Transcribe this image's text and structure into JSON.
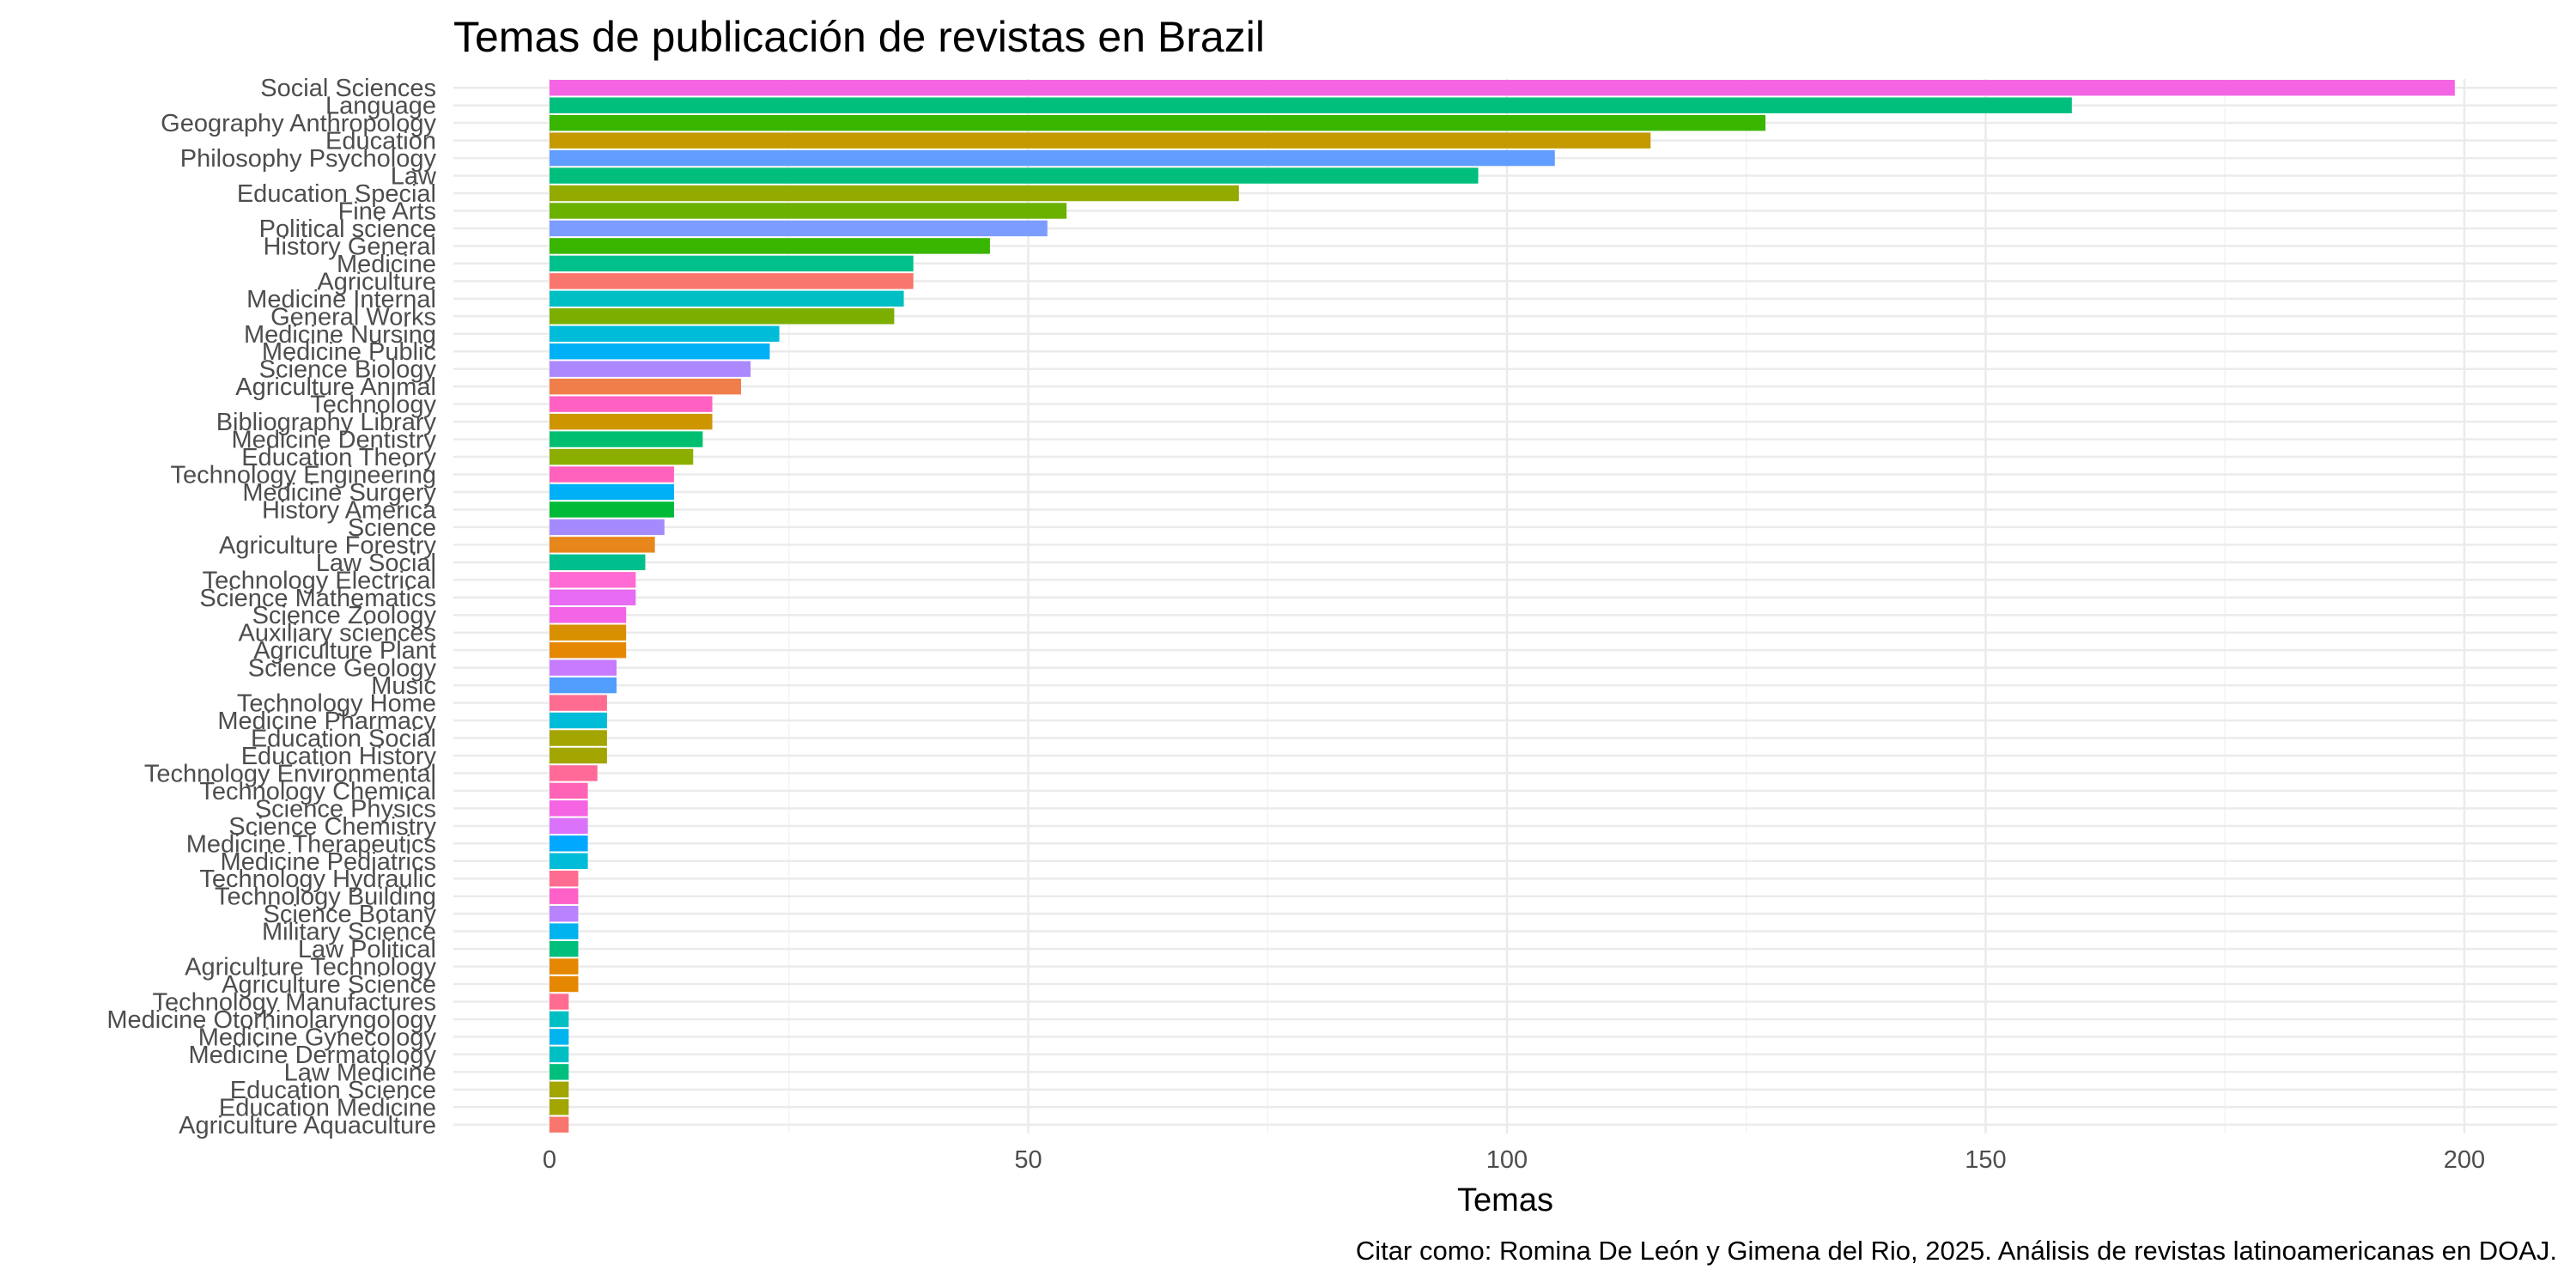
{
  "chart_data": {
    "type": "bar",
    "orientation": "horizontal",
    "title": "Temas de publicación de revistas en Brazil",
    "xlabel": "Temas",
    "ylabel": "",
    "caption": "Citar como: Romina De León y Gimena del Rio, 2025. Análisis de revistas latinoamericanas en DOAJ.",
    "xlim": [
      0,
      200
    ],
    "x_ticks": [
      0,
      50,
      100,
      150,
      200
    ],
    "grid": true,
    "legend": "none",
    "categories": [
      "Social Sciences",
      "Language",
      "Geography Anthropology",
      "Education",
      "Philosophy Psychology",
      "Law",
      "Education Special",
      "Fine Arts",
      "Political science",
      "History General",
      "Medicine",
      "Agriculture",
      "Medicine Internal",
      "General Works",
      "Medicine Nursing",
      "Medicine Public",
      "Science Biology",
      "Agriculture Animal",
      "Technology",
      "Bibliography Library",
      "Medicine Dentistry",
      "Education Theory",
      "Technology Engineering",
      "Medicine Surgery",
      "History America",
      "Science",
      "Agriculture Forestry",
      "Law Social",
      "Technology Electrical",
      "Science Mathematics",
      "Science Zoology",
      "Auxiliary sciences",
      "Agriculture Plant",
      "Science Geology",
      "Music",
      "Technology Home",
      "Medicine Pharmacy",
      "Education Social",
      "Education History",
      "Technology Environmental",
      "Technology Chemical",
      "Science Physics",
      "Science Chemistry",
      "Medicine Therapeutics",
      "Medicine Pediatrics",
      "Technology Hydraulic",
      "Technology Building",
      "Science Botany",
      "Military Science",
      "Law Political",
      "Agriculture Technology",
      "Agriculture Science",
      "Technology Manufactures",
      "Medicine Otorhinolaryngology",
      "Medicine Gynecology",
      "Medicine Dermatology",
      "Law Medicine",
      "Education Science",
      "Education Medicine",
      "Agriculture Aquaculture"
    ],
    "values": [
      199,
      159,
      127,
      115,
      105,
      97,
      72,
      54,
      52,
      46,
      38,
      38,
      37,
      36,
      24,
      23,
      21,
      20,
      17,
      17,
      16,
      15,
      13,
      13,
      13,
      12,
      11,
      10,
      9,
      9,
      8,
      8,
      8,
      7,
      7,
      6,
      6,
      6,
      6,
      5,
      4,
      4,
      4,
      4,
      4,
      3,
      3,
      3,
      3,
      3,
      3,
      3,
      2,
      2,
      2,
      2,
      2,
      2,
      2,
      2
    ],
    "colors": [
      "#F564E3",
      "#00BF7D",
      "#39B600",
      "#C49A00",
      "#619CFF",
      "#00BF7D",
      "#93AA00",
      "#6BB100",
      "#7C9CFF",
      "#39B600",
      "#00C08B",
      "#F8766D",
      "#00BFC4",
      "#7CAE00",
      "#00BCD8",
      "#00B0F6",
      "#AC88FF",
      "#F07E4B",
      "#FF61C3",
      "#CD9600",
      "#00BE70",
      "#8BAE00",
      "#FF62BC",
      "#00B0F6",
      "#00BA38",
      "#A58AFF",
      "#E7861B",
      "#00BF8C",
      "#FF6BD3",
      "#E76BF3",
      "#F365E6",
      "#D89000",
      "#E58700",
      "#C77CFF",
      "#529EFF",
      "#FF6C91",
      "#00BCD8",
      "#A3A500",
      "#A3A500",
      "#FF6A98",
      "#FF63B6",
      "#F564E3",
      "#DB72FB",
      "#00A9FF",
      "#00BCD8",
      "#FF6C91",
      "#FF61C9",
      "#B983FF",
      "#00B2EE",
      "#00BF7D",
      "#E58700",
      "#E58700",
      "#FF6C91",
      "#00BFC4",
      "#00B4EF",
      "#00BFC4",
      "#00BF7D",
      "#A3A500",
      "#A3A500",
      "#F8766D"
    ]
  }
}
